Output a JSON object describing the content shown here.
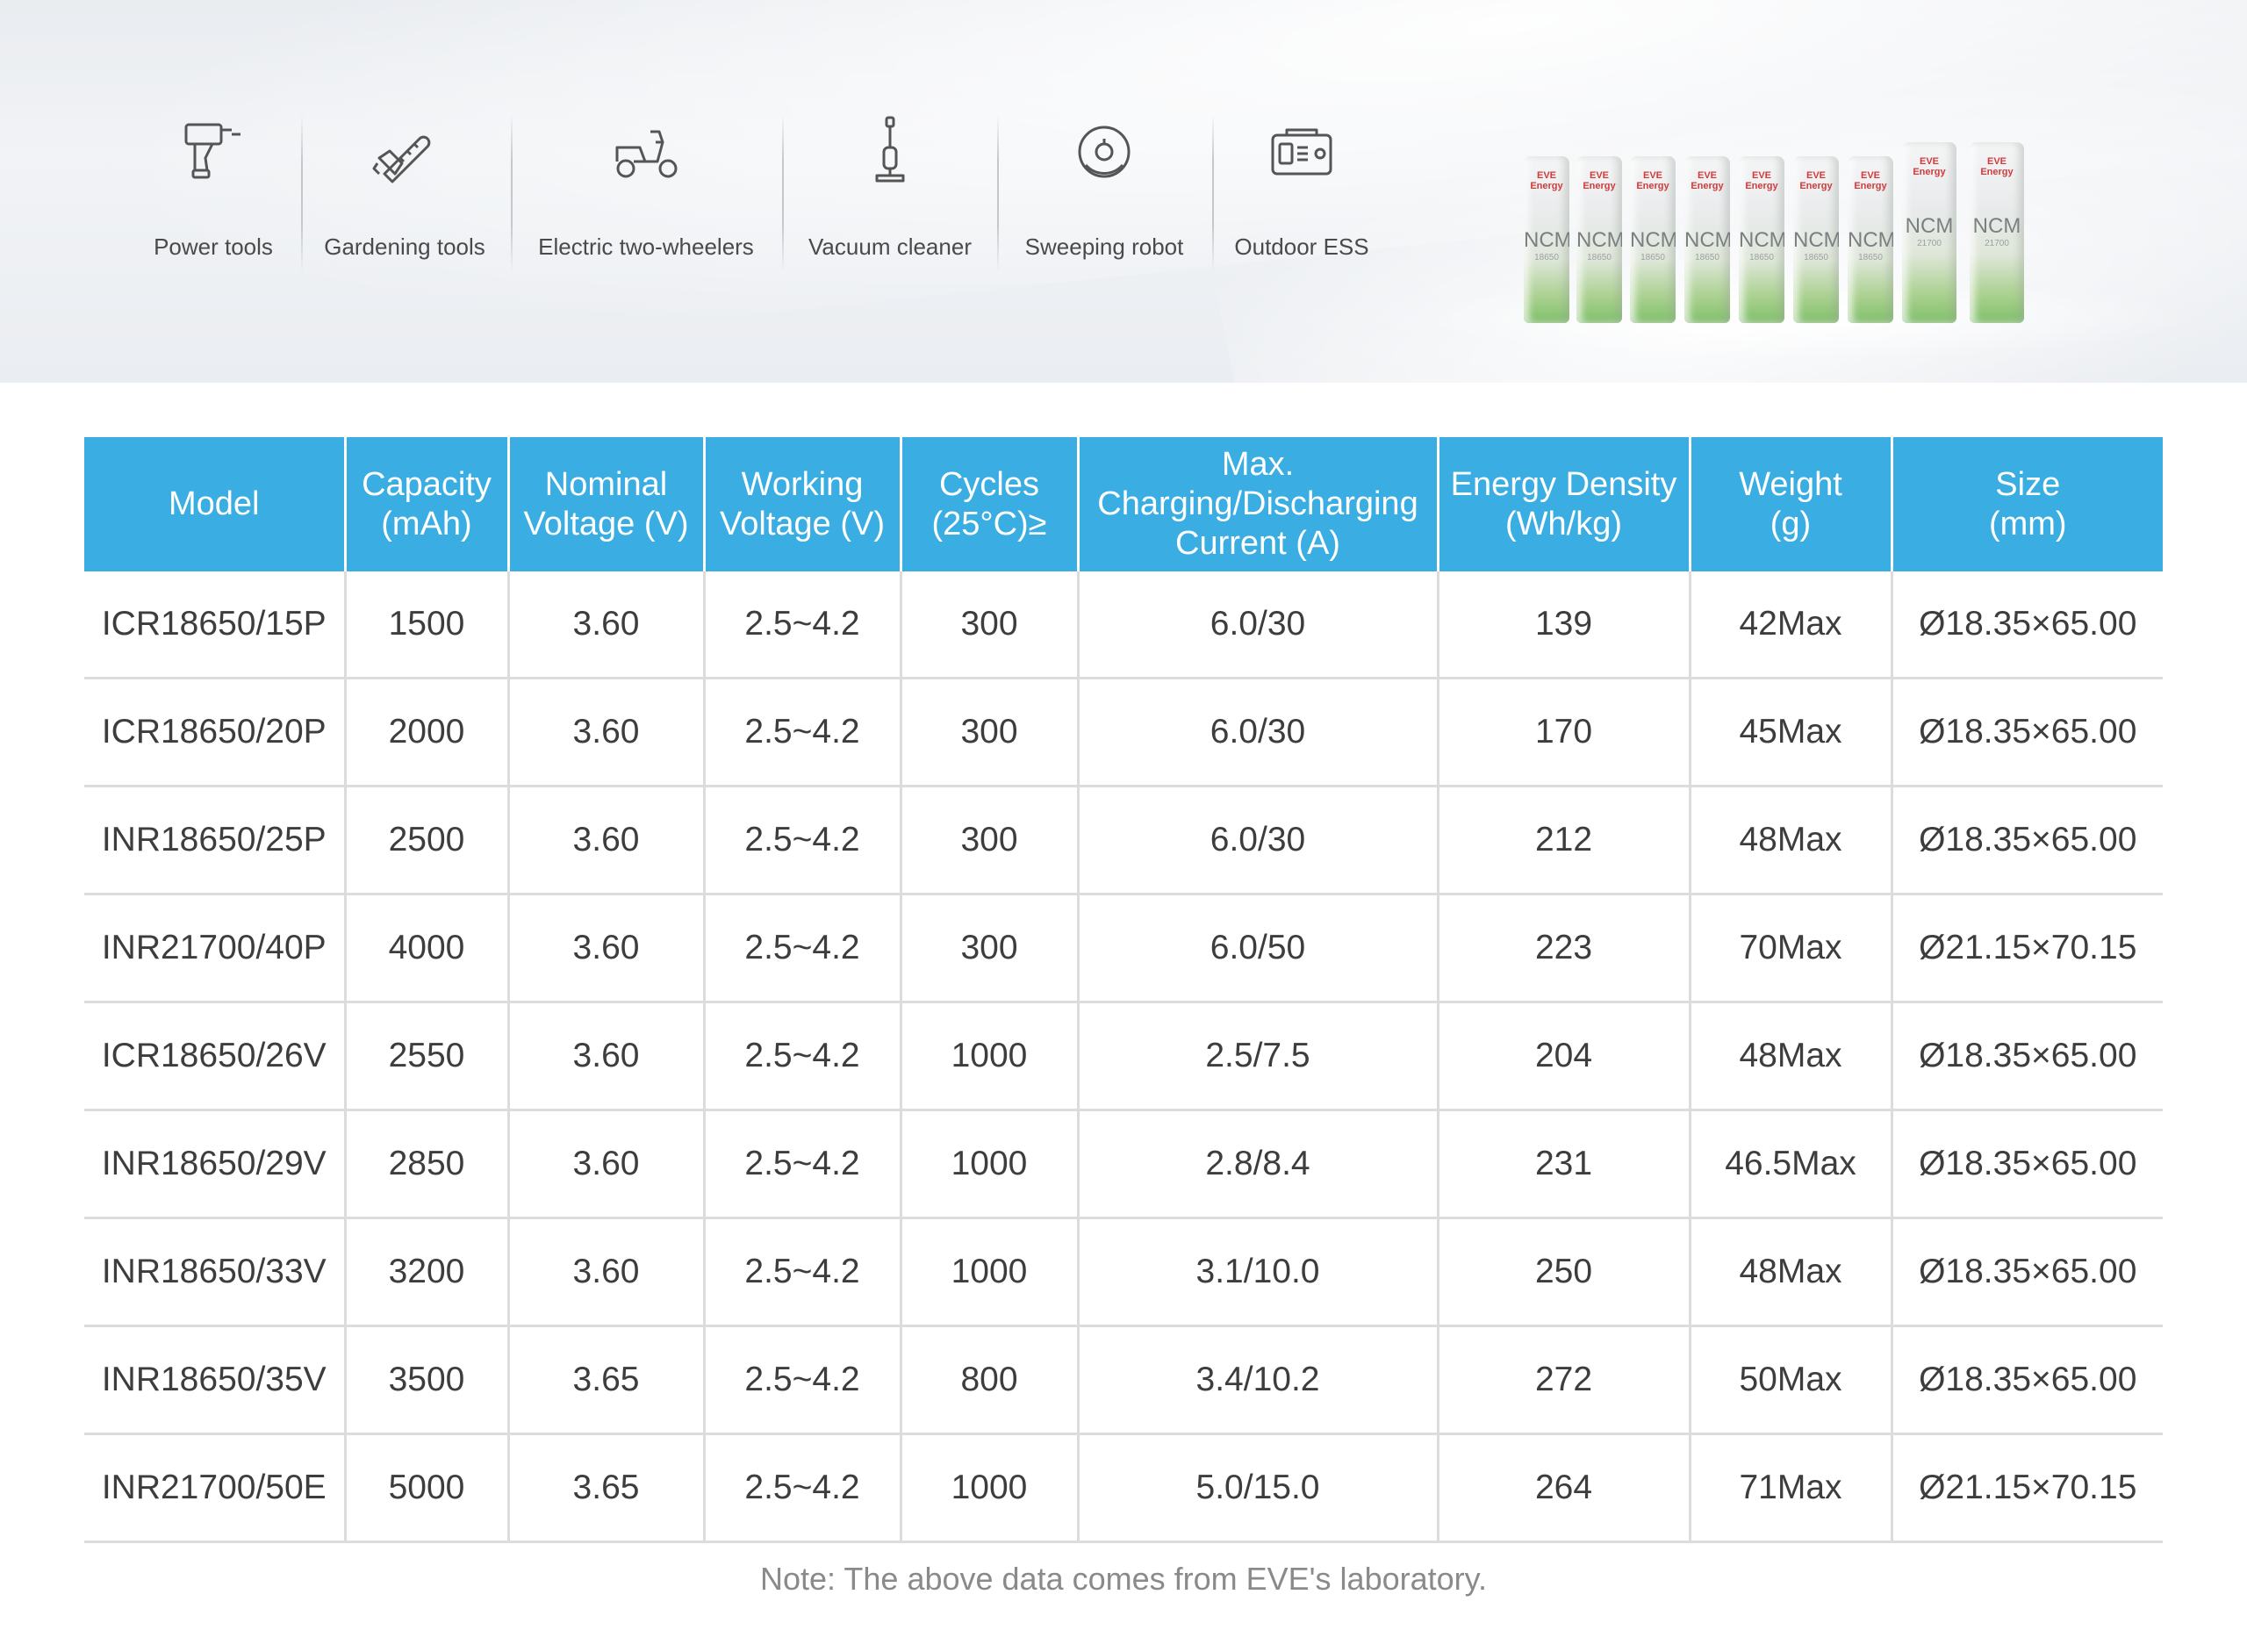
{
  "applications": [
    {
      "label": "Power tools",
      "icon": "drill-icon"
    },
    {
      "label": "Gardening tools",
      "icon": "chainsaw-icon"
    },
    {
      "label": "Electric two-wheelers",
      "icon": "scooter-icon"
    },
    {
      "label": "Vacuum cleaner",
      "icon": "vacuum-icon"
    },
    {
      "label": "Sweeping robot",
      "icon": "robot-vacuum-icon"
    },
    {
      "label": "Outdoor ESS",
      "icon": "power-station-icon"
    }
  ],
  "batteries": [
    {
      "brand": "EVE Energy",
      "chem": "NCM",
      "size": "18650"
    },
    {
      "brand": "EVE Energy",
      "chem": "NCM",
      "size": "18650"
    },
    {
      "brand": "EVE Energy",
      "chem": "NCM",
      "size": "18650"
    },
    {
      "brand": "EVE Energy",
      "chem": "NCM",
      "size": "18650"
    },
    {
      "brand": "EVE Energy",
      "chem": "NCM",
      "size": "18650"
    },
    {
      "brand": "EVE Energy",
      "chem": "NCM",
      "size": "18650"
    },
    {
      "brand": "EVE Energy",
      "chem": "NCM",
      "size": "18650"
    },
    {
      "brand": "EVE Energy",
      "chem": "NCM",
      "size": "21700"
    },
    {
      "brand": "EVE Energy",
      "chem": "NCM",
      "size": "21700"
    }
  ],
  "table": {
    "headers": [
      [
        "Model"
      ],
      [
        "Capacity",
        "(mAh)"
      ],
      [
        "Nominal",
        "Voltage (V)"
      ],
      [
        "Working",
        "Voltage (V)"
      ],
      [
        "Cycles",
        "(25°C)≥"
      ],
      [
        "Max.",
        "Charging/Discharging",
        "Current (A)"
      ],
      [
        "Energy Density",
        "(Wh/kg)"
      ],
      [
        "Weight",
        "(g)"
      ],
      [
        "Size",
        "(mm)"
      ]
    ],
    "rows": [
      [
        "ICR18650/15P",
        "1500",
        "3.60",
        "2.5~4.2",
        "300",
        "6.0/30",
        "139",
        "42Max",
        "Ø18.35×65.00"
      ],
      [
        "ICR18650/20P",
        "2000",
        "3.60",
        "2.5~4.2",
        "300",
        "6.0/30",
        "170",
        "45Max",
        "Ø18.35×65.00"
      ],
      [
        "INR18650/25P",
        "2500",
        "3.60",
        "2.5~4.2",
        "300",
        "6.0/30",
        "212",
        "48Max",
        "Ø18.35×65.00"
      ],
      [
        "INR21700/40P",
        "4000",
        "3.60",
        "2.5~4.2",
        "300",
        "6.0/50",
        "223",
        "70Max",
        "Ø21.15×70.15"
      ],
      [
        "ICR18650/26V",
        "2550",
        "3.60",
        "2.5~4.2",
        "1000",
        "2.5/7.5",
        "204",
        "48Max",
        "Ø18.35×65.00"
      ],
      [
        "INR18650/29V",
        "2850",
        "3.60",
        "2.5~4.2",
        "1000",
        "2.8/8.4",
        "231",
        "46.5Max",
        "Ø18.35×65.00"
      ],
      [
        "INR18650/33V",
        "3200",
        "3.60",
        "2.5~4.2",
        "1000",
        "3.1/10.0",
        "250",
        "48Max",
        "Ø18.35×65.00"
      ],
      [
        "INR18650/35V",
        "3500",
        "3.65",
        "2.5~4.2",
        "800",
        "3.4/10.2",
        "272",
        "50Max",
        "Ø18.35×65.00"
      ],
      [
        "INR21700/50E",
        "5000",
        "3.65",
        "2.5~4.2",
        "1000",
        "5.0/15.0",
        "264",
        "71Max",
        "Ø21.15×70.15"
      ]
    ]
  },
  "note": "Note: The above data comes from EVE's laboratory.",
  "colors": {
    "header_bg": "#3aade2",
    "header_text": "#ffffff",
    "grid": "#dcdcdc",
    "battery_green": "#7fc06a"
  }
}
